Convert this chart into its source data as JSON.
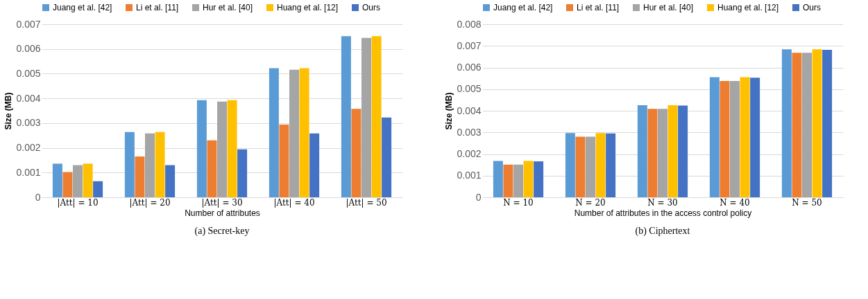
{
  "chart_data": [
    {
      "type": "bar",
      "title": "(a) Secret-key",
      "xlabel": "Number of attributes",
      "ylabel": "Size (MB)",
      "categories": [
        "|Att| = 10",
        "|Att| = 20",
        "|Att| = 30",
        "|Att| = 40",
        "|Att| = 50"
      ],
      "series": [
        {
          "name": "Juang et al. [42]",
          "color": "#5b9bd5",
          "values": [
            0.00136,
            0.00264,
            0.00393,
            0.00522,
            0.00652
          ]
        },
        {
          "name": "Li et al. [11]",
          "color": "#ed7d31",
          "values": [
            0.00102,
            0.00165,
            0.0023,
            0.00294,
            0.00358
          ]
        },
        {
          "name": "Hur et al. [40]",
          "color": "#a5a5a5",
          "values": [
            0.0013,
            0.00258,
            0.00387,
            0.00516,
            0.00645
          ]
        },
        {
          "name": "Huang et al. [12]",
          "color": "#ffc000",
          "values": [
            0.00136,
            0.00264,
            0.00393,
            0.00522,
            0.00652
          ]
        },
        {
          "name": "Ours",
          "color": "#4472c4",
          "values": [
            0.00065,
            0.0013,
            0.00194,
            0.00258,
            0.00323
          ]
        }
      ],
      "ylim": [
        0,
        0.007
      ],
      "yticks": [
        0,
        0.001,
        0.002,
        0.003,
        0.004,
        0.005,
        0.006,
        0.007
      ],
      "grid": "y",
      "legend": "top"
    },
    {
      "type": "bar",
      "title": "(b) Ciphertext",
      "xlabel": "Number of attributes in the access control policy",
      "ylabel": "Size (MB)",
      "categories": [
        "N = 10",
        "N = 20",
        "N = 30",
        "N = 40",
        "N = 50"
      ],
      "series": [
        {
          "name": "Juang et al. [42]",
          "color": "#5b9bd5",
          "values": [
            0.00168,
            0.00297,
            0.00426,
            0.00555,
            0.00684
          ]
        },
        {
          "name": "Li et al. [11]",
          "color": "#ed7d31",
          "values": [
            0.00151,
            0.0028,
            0.00409,
            0.00538,
            0.00668
          ]
        },
        {
          "name": "Hur et al. [40]",
          "color": "#a5a5a5",
          "values": [
            0.00151,
            0.0028,
            0.00409,
            0.00538,
            0.00668
          ]
        },
        {
          "name": "Huang et al. [12]",
          "color": "#ffc000",
          "values": [
            0.00168,
            0.00297,
            0.00426,
            0.00555,
            0.00684
          ]
        },
        {
          "name": "Ours",
          "color": "#4472c4",
          "values": [
            0.00166,
            0.00295,
            0.00424,
            0.00553,
            0.00682
          ]
        }
      ],
      "ylim": [
        0,
        0.008
      ],
      "yticks": [
        0,
        0.001,
        0.002,
        0.003,
        0.004,
        0.005,
        0.006,
        0.007,
        0.008
      ],
      "grid": "y",
      "legend": "top"
    }
  ]
}
